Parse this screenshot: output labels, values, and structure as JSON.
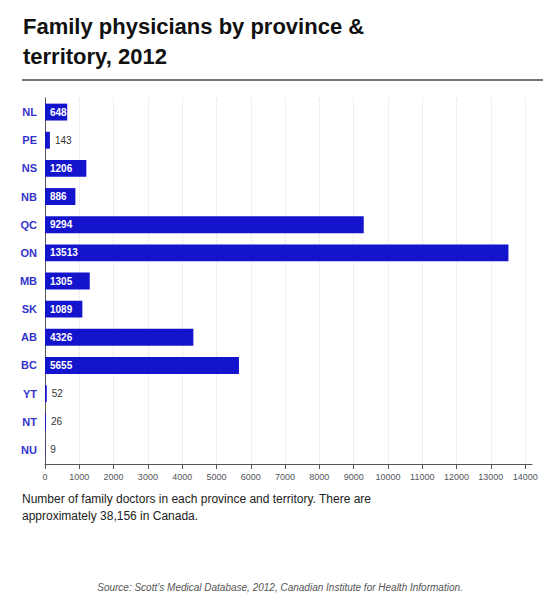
{
  "chart_data": {
    "type": "bar",
    "title": "Family physicians by province &\nterritory, 2012",
    "categories": [
      "NL",
      "PE",
      "NS",
      "NB",
      "QC",
      "ON",
      "MB",
      "SK",
      "AB",
      "BC",
      "YT",
      "NT",
      "NU"
    ],
    "values": [
      648,
      143,
      1206,
      886,
      9294,
      13513,
      1305,
      1089,
      4326,
      5655,
      52,
      26,
      9
    ],
    "color": "#1414cc",
    "orientation": "horizontal",
    "xlim": [
      0,
      14200
    ],
    "xticks": [
      0,
      1000,
      2000,
      3000,
      4000,
      5000,
      6000,
      7000,
      8000,
      9000,
      10000,
      11000,
      12000,
      13000,
      14000
    ],
    "grid": true,
    "data_labels": true,
    "annotations": [
      "Number of family doctors in each province and territory. There are\napproximately 38,156 in Canada.",
      "Source: Scott’s Medical Database, 2012, Canadian Institute for Health Information."
    ]
  }
}
